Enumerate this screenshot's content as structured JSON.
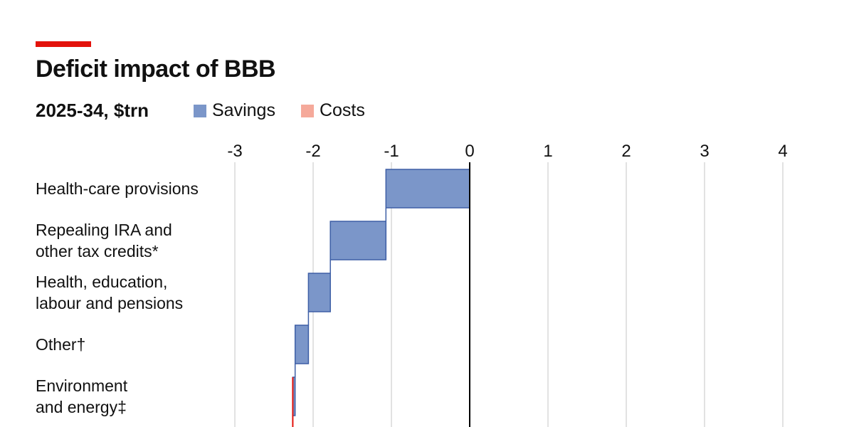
{
  "header": {
    "title": "Deficit impact of BBB",
    "subtitle": "2025-34, $trn"
  },
  "colors": {
    "accent_bar": "#e3120b",
    "savings": "#7b96c9",
    "savings_edge": "#3e5fa6",
    "costs": "#f5a99a",
    "costs_edge": "#e3120b",
    "gridline": "#d9d9d9",
    "zero_line": "#000000"
  },
  "legend": [
    {
      "label": "Savings",
      "color": "#7b96c9"
    },
    {
      "label": "Costs",
      "color": "#f5a99a"
    }
  ],
  "chart_data": {
    "type": "bar",
    "subtype": "waterfall-horizontal",
    "title": "Deficit impact of BBB",
    "subtitle": "2025-34, $trn",
    "xlim": [
      -3,
      4
    ],
    "ticks": [
      "-3",
      "-2",
      "-1",
      "0",
      "1",
      "2",
      "3",
      "4"
    ],
    "tick_values": [
      -3,
      -2,
      -1,
      0,
      1,
      2,
      3,
      4
    ],
    "grid": true,
    "legend_position": "top",
    "categories": [
      [
        "Health-care provisions"
      ],
      [
        "Repealing IRA and",
        "other tax credits*"
      ],
      [
        "Health, education,",
        "labour and pensions"
      ],
      [
        "Other†"
      ],
      [
        "Environment",
        "and energy‡"
      ]
    ],
    "series": [
      {
        "name": "Savings",
        "values": [
          -1.07,
          -0.71,
          -0.28,
          -0.17,
          -0.03
        ]
      },
      {
        "name": "Costs",
        "values": [
          0,
          0,
          0,
          0,
          0
        ]
      }
    ],
    "running_start": [
      0,
      -1.07,
      -1.78,
      -2.06,
      -2.23
    ]
  }
}
